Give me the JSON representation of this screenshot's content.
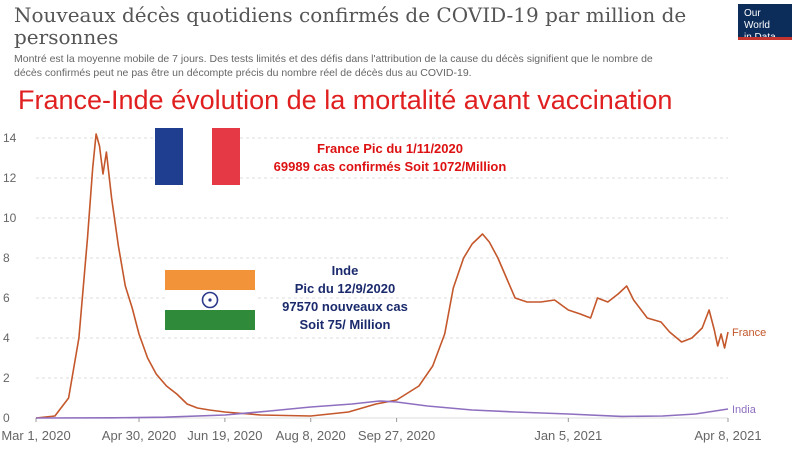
{
  "header": {
    "title": "Nouveaux décès quotidiens confirmés de COVID-19 par million de personnes",
    "subtitle": "Montré est la moyenne mobile de 7 jours. Des tests limités et des défis dans l'attribution de la cause du décès signifient que le nombre de décès confirmés peut ne pas être un décompte précis du nombre réel de décès dus au COVID-19.",
    "logo_line1": "Our World",
    "logo_line2": "in Data"
  },
  "banner": "France-Inde évolution de la mortalité avant vaccination",
  "annotations": {
    "france": {
      "line1": "France Pic du 1/11/2020",
      "line2": "69989 cas confirmés Soit 1072/Million"
    },
    "india": {
      "line1": "Inde",
      "line2": "Pic du 12/9/2020",
      "line3": "97570 nouveaux cas",
      "line4": "Soit 75/ Million"
    }
  },
  "flags": {
    "france": [
      "#1f3e8f",
      "#ffffff",
      "#e63946"
    ],
    "india": [
      "#f2933a",
      "#ffffff",
      "#2f8a3a"
    ],
    "india_wheel": "#2b3a8a"
  },
  "colors": {
    "france": "#c4572b",
    "india": "#8e6fbf",
    "grid": "#dddddd",
    "axis_text": "#666666"
  },
  "chart_data": {
    "type": "line",
    "x_type": "date",
    "x_start": "2020-03-01",
    "x_end": "2021-04-08",
    "xticks": [
      "2020-03-01",
      "2020-04-30",
      "2020-06-19",
      "2020-08-08",
      "2020-09-27",
      "2021-01-05",
      "2021-04-08"
    ],
    "xtick_labels": [
      "Mar 1, 2020",
      "Apr 30, 2020",
      "Jun 19, 2020",
      "Aug 8, 2020",
      "Sep 27, 2020",
      "Jan 5, 2021",
      "Apr 8, 2021"
    ],
    "ylim": [
      0,
      14
    ],
    "yticks": [
      0,
      2,
      4,
      6,
      8,
      10,
      12,
      14
    ],
    "grid": true,
    "series": [
      {
        "name": "France",
        "points": [
          [
            "2020-03-01",
            0
          ],
          [
            "2020-03-12",
            0.1
          ],
          [
            "2020-03-20",
            1.0
          ],
          [
            "2020-03-26",
            4.0
          ],
          [
            "2020-03-31",
            9.0
          ],
          [
            "2020-04-03",
            12.5
          ],
          [
            "2020-04-05",
            14.2
          ],
          [
            "2020-04-07",
            13.6
          ],
          [
            "2020-04-09",
            12.2
          ],
          [
            "2020-04-11",
            13.3
          ],
          [
            "2020-04-14",
            11.0
          ],
          [
            "2020-04-18",
            8.6
          ],
          [
            "2020-04-22",
            6.6
          ],
          [
            "2020-04-26",
            5.5
          ],
          [
            "2020-04-30",
            4.2
          ],
          [
            "2020-05-05",
            3.0
          ],
          [
            "2020-05-10",
            2.2
          ],
          [
            "2020-05-16",
            1.6
          ],
          [
            "2020-05-22",
            1.2
          ],
          [
            "2020-05-28",
            0.7
          ],
          [
            "2020-06-03",
            0.5
          ],
          [
            "2020-06-10",
            0.4
          ],
          [
            "2020-06-19",
            0.3
          ],
          [
            "2020-07-10",
            0.15
          ],
          [
            "2020-08-08",
            0.1
          ],
          [
            "2020-08-30",
            0.3
          ],
          [
            "2020-09-15",
            0.7
          ],
          [
            "2020-09-27",
            0.9
          ],
          [
            "2020-10-10",
            1.6
          ],
          [
            "2020-10-18",
            2.6
          ],
          [
            "2020-10-25",
            4.2
          ],
          [
            "2020-10-30",
            6.5
          ],
          [
            "2020-11-05",
            8.0
          ],
          [
            "2020-11-10",
            8.7
          ],
          [
            "2020-11-16",
            9.2
          ],
          [
            "2020-11-20",
            8.8
          ],
          [
            "2020-11-25",
            8.0
          ],
          [
            "2020-11-30",
            7.0
          ],
          [
            "2020-12-05",
            6.0
          ],
          [
            "2020-12-12",
            5.8
          ],
          [
            "2020-12-20",
            5.8
          ],
          [
            "2020-12-28",
            5.9
          ],
          [
            "2021-01-05",
            5.4
          ],
          [
            "2021-01-12",
            5.2
          ],
          [
            "2021-01-18",
            5.0
          ],
          [
            "2021-01-22",
            6.0
          ],
          [
            "2021-01-28",
            5.8
          ],
          [
            "2021-02-03",
            6.2
          ],
          [
            "2021-02-08",
            6.6
          ],
          [
            "2021-02-12",
            5.9
          ],
          [
            "2021-02-20",
            5.0
          ],
          [
            "2021-02-28",
            4.8
          ],
          [
            "2021-03-05",
            4.3
          ],
          [
            "2021-03-12",
            3.8
          ],
          [
            "2021-03-18",
            4.0
          ],
          [
            "2021-03-24",
            4.5
          ],
          [
            "2021-03-28",
            5.4
          ],
          [
            "2021-03-31",
            4.4
          ],
          [
            "2021-04-02",
            3.6
          ],
          [
            "2021-04-04",
            4.2
          ],
          [
            "2021-04-06",
            3.5
          ],
          [
            "2021-04-08",
            4.3
          ]
        ]
      },
      {
        "name": "India",
        "points": [
          [
            "2020-03-01",
            0
          ],
          [
            "2020-04-15",
            0.01
          ],
          [
            "2020-05-15",
            0.04
          ],
          [
            "2020-06-19",
            0.15
          ],
          [
            "2020-07-15",
            0.35
          ],
          [
            "2020-08-08",
            0.55
          ],
          [
            "2020-09-01",
            0.7
          ],
          [
            "2020-09-17",
            0.85
          ],
          [
            "2020-09-27",
            0.8
          ],
          [
            "2020-10-15",
            0.6
          ],
          [
            "2020-11-10",
            0.4
          ],
          [
            "2020-12-05",
            0.3
          ],
          [
            "2021-01-05",
            0.2
          ],
          [
            "2021-02-05",
            0.08
          ],
          [
            "2021-03-01",
            0.1
          ],
          [
            "2021-03-20",
            0.2
          ],
          [
            "2021-04-08",
            0.45
          ]
        ]
      }
    ]
  }
}
